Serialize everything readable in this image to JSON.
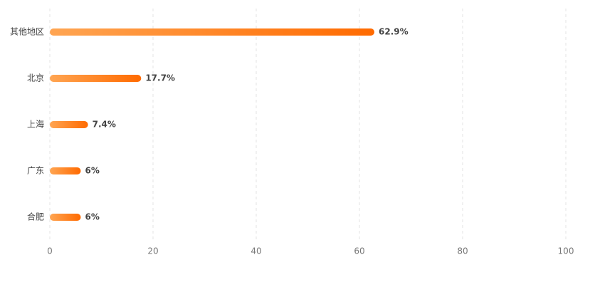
{
  "chart_data": {
    "type": "hbar",
    "categories": [
      "其他地区",
      "北京",
      "上海",
      "广东",
      "合肥"
    ],
    "values": [
      62.9,
      17.7,
      7.4,
      6,
      6
    ],
    "value_labels": [
      "62.9%",
      "17.7%",
      "7.4%",
      "6%",
      "6%"
    ],
    "gradient": [
      "#ffa552",
      "#ff6a00"
    ],
    "label_color": "#f07a20",
    "xlim": [
      0,
      100
    ],
    "xticks": [
      0,
      20,
      40,
      60,
      80,
      100
    ],
    "grid": true
  }
}
